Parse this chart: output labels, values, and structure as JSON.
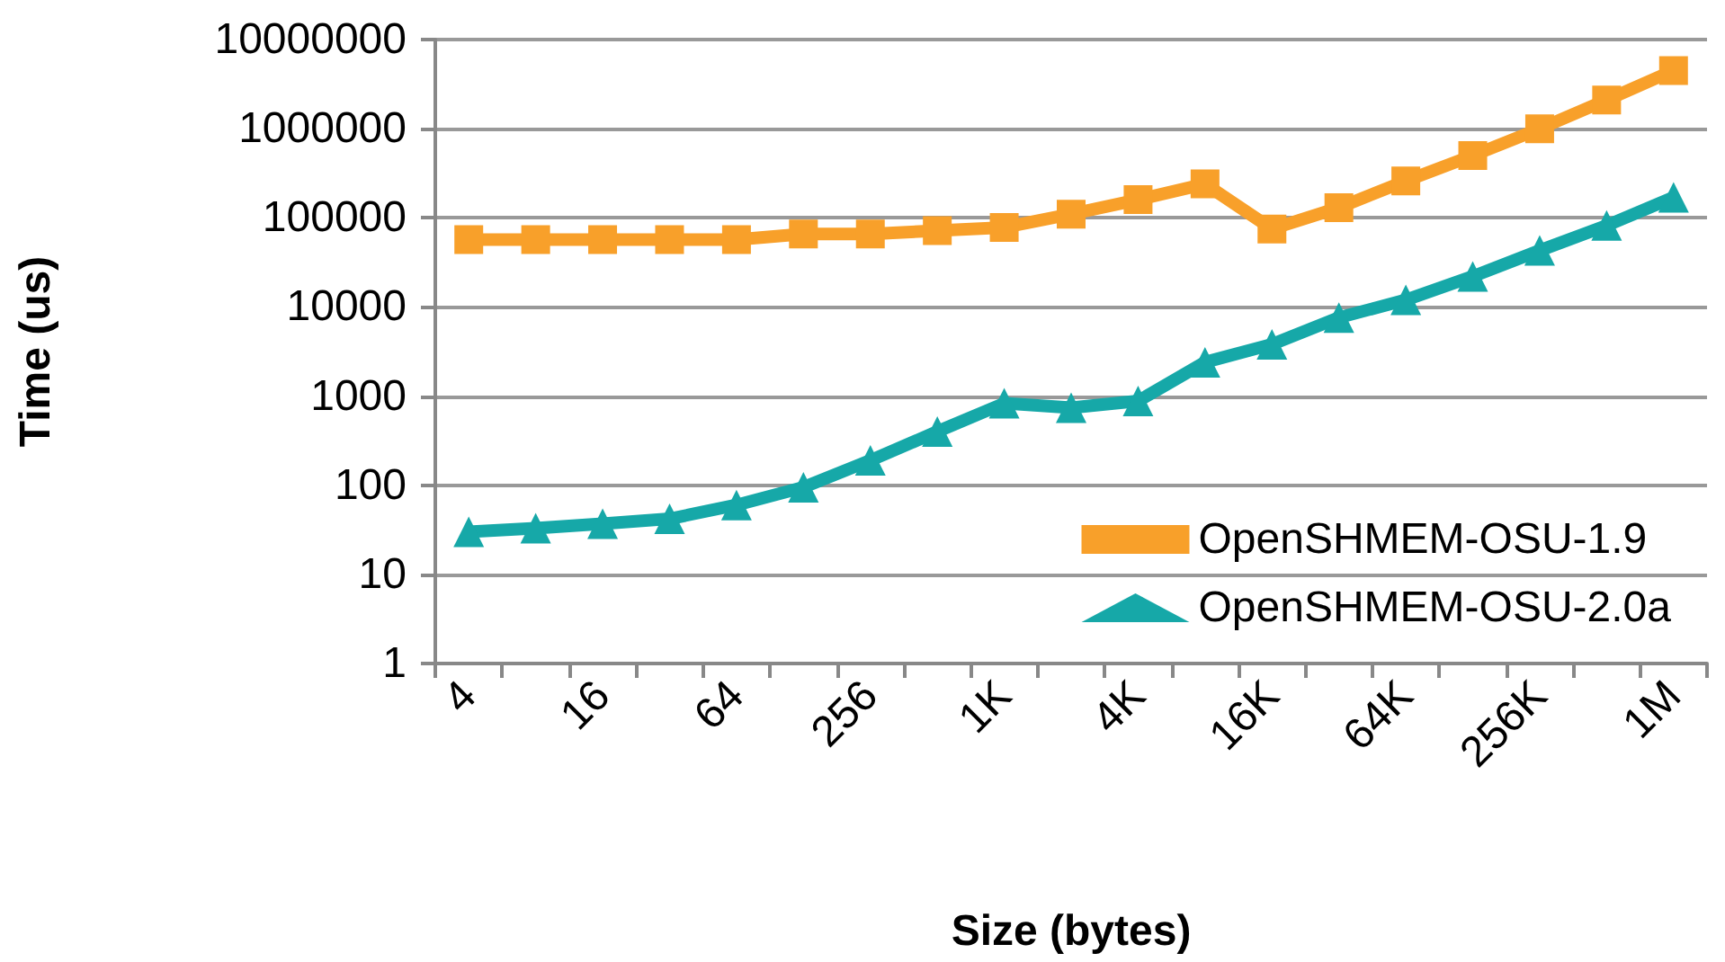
{
  "chart_data": {
    "type": "line",
    "xlabel": "Size (bytes)",
    "ylabel": "Time (us)",
    "categories": [
      "4",
      null,
      "16",
      null,
      "64",
      null,
      "256",
      null,
      "1K",
      null,
      "4K",
      null,
      "16K",
      null,
      "64K",
      null,
      "256K",
      null,
      "1M"
    ],
    "series": [
      {
        "name": "OpenSHMEM-OSU-1.9",
        "color": "#f8a02a",
        "marker": "square",
        "values": [
          57000,
          57000,
          57000,
          57000,
          57000,
          66000,
          66000,
          72000,
          78000,
          110000,
          160000,
          240000,
          75000,
          130000,
          260000,
          500000,
          1000000,
          2100000,
          4500000
        ]
      },
      {
        "name": "OpenSHMEM-OSU-2.0a",
        "color": "#16a8a8",
        "marker": "triangle",
        "values": [
          30,
          33,
          37,
          42,
          60,
          95,
          190,
          400,
          830,
          740,
          880,
          2400,
          3800,
          7600,
          12000,
          22000,
          43000,
          82000,
          170000
        ]
      }
    ],
    "log": "y",
    "ylim": [
      1,
      10000000
    ],
    "yticks": [
      1,
      10,
      100,
      1000,
      10000,
      100000,
      1000000,
      10000000
    ],
    "grid": "y",
    "legend": "bottom right"
  }
}
